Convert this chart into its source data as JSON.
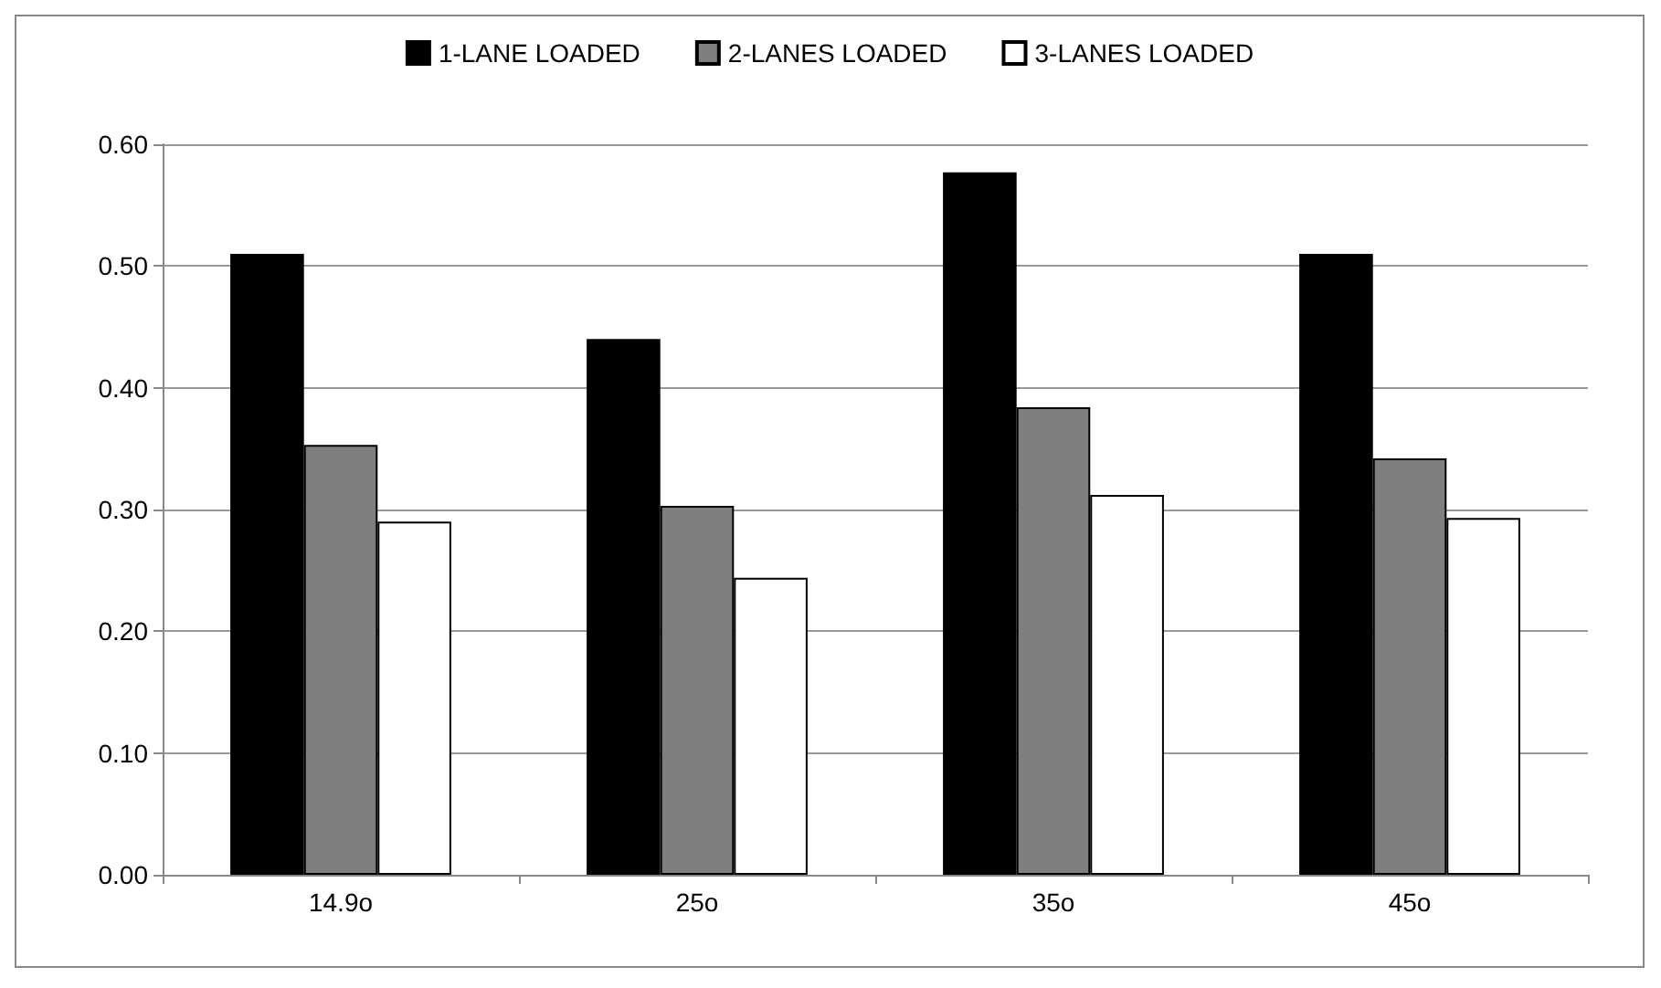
{
  "chart_data": {
    "type": "bar",
    "categories": [
      "14.9o",
      "25o",
      "35o",
      "45o"
    ],
    "series": [
      {
        "name": "1-LANE LOADED",
        "color": "#000000",
        "values": [
          0.51,
          0.44,
          0.577,
          0.51
        ]
      },
      {
        "name": "2-LANES LOADED",
        "color": "#7f7f7f",
        "values": [
          0.353,
          0.303,
          0.384,
          0.342
        ]
      },
      {
        "name": "3-LANES LOADED",
        "color": "#ffffff",
        "values": [
          0.29,
          0.244,
          0.312,
          0.293
        ]
      }
    ],
    "ylim": [
      0,
      0.6
    ],
    "yticks": [
      {
        "value": 0,
        "label": "0.00"
      },
      {
        "value": 0.1,
        "label": "0.10"
      },
      {
        "value": 0.2,
        "label": "0.20"
      },
      {
        "value": 0.3,
        "label": "0.30"
      },
      {
        "value": 0.4,
        "label": "0.40"
      },
      {
        "value": 0.5,
        "label": "0.50"
      },
      {
        "value": 0.6,
        "label": "0.60"
      }
    ],
    "grid": "y",
    "legend": "top"
  }
}
